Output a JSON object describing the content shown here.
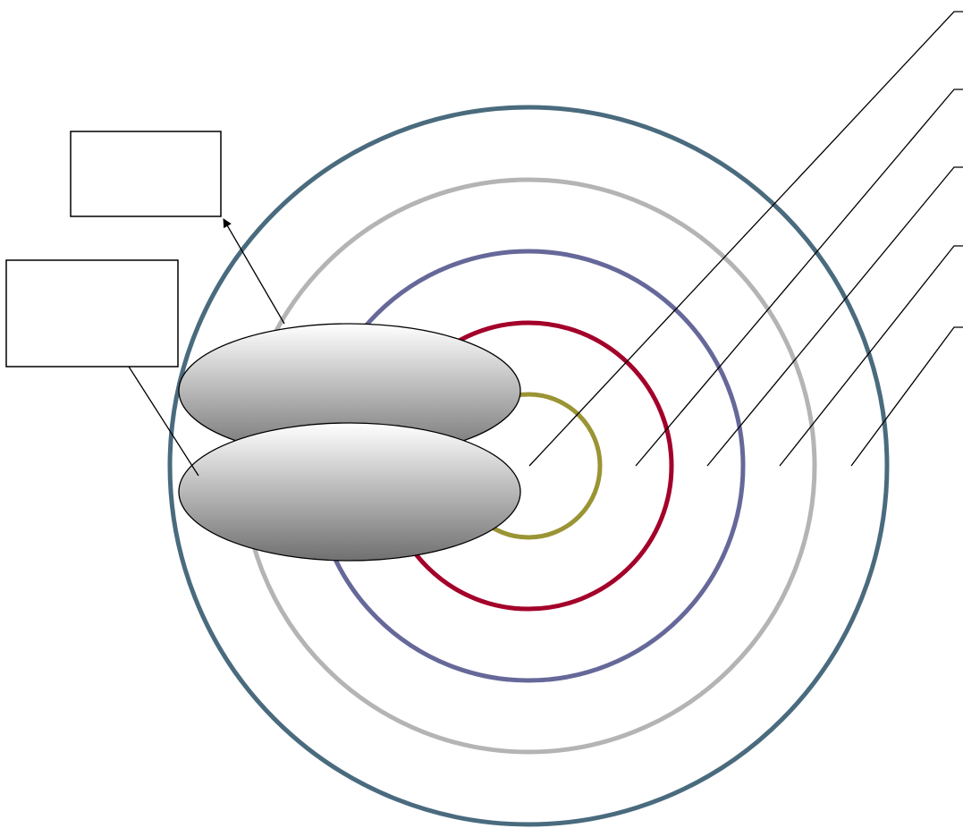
{
  "diagram": {
    "rings": [
      {
        "name": "ring-innermost",
        "color": "#9a9434"
      },
      {
        "name": "ring-2",
        "color": "#a3002a"
      },
      {
        "name": "ring-3",
        "color": "#666899"
      },
      {
        "name": "ring-4",
        "color": "#b4b4b4"
      },
      {
        "name": "ring-outermost",
        "color": "#4a6b7e"
      }
    ],
    "label_boxes": [
      {
        "name": "label-box-upper",
        "text": ""
      },
      {
        "name": "label-box-lower",
        "text": ""
      }
    ],
    "ellipse_gradient": {
      "top": "#ffffff",
      "bottom": "#707070"
    },
    "leader_line_color": "#000000"
  }
}
